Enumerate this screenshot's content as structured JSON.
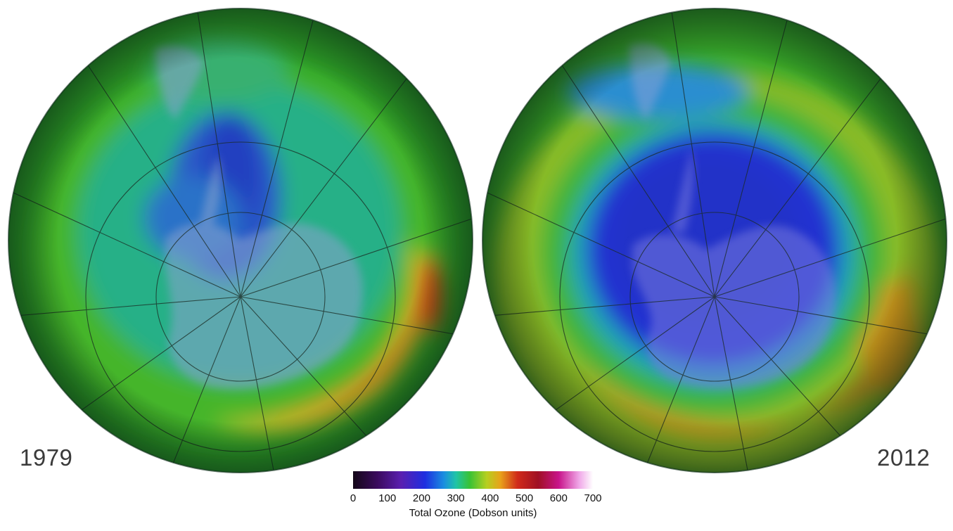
{
  "maps": [
    {
      "year_label": "1979"
    },
    {
      "year_label": "2012"
    }
  ],
  "colorbar": {
    "title": "Total Ozone (Dobson units)",
    "ticks": [
      "0",
      "100",
      "200",
      "300",
      "400",
      "500",
      "600",
      "700"
    ],
    "range": [
      0,
      700
    ],
    "stops": [
      {
        "value": 0,
        "color": "#140818"
      },
      {
        "value": 70,
        "color": "#3a0a5c"
      },
      {
        "value": 140,
        "color": "#5a1fb0"
      },
      {
        "value": 210,
        "color": "#1e2ee0"
      },
      {
        "value": 265,
        "color": "#1a8ee0"
      },
      {
        "value": 300,
        "color": "#1fc4a8"
      },
      {
        "value": 340,
        "color": "#38c235"
      },
      {
        "value": 390,
        "color": "#b6cf20"
      },
      {
        "value": 430,
        "color": "#e8a21a"
      },
      {
        "value": 480,
        "color": "#d02a1a"
      },
      {
        "value": 540,
        "color": "#a01024"
      },
      {
        "value": 600,
        "color": "#c8148a"
      },
      {
        "value": 660,
        "color": "#f0a8e8"
      },
      {
        "value": 700,
        "color": "#ffffff"
      }
    ]
  },
  "colors": {
    "ozone_low": "#2a3bd4",
    "ozone_mid": "#22b08a",
    "ozone_background": "#3fae2a",
    "ozone_high": "#d24a12",
    "land": "#8a96c8",
    "graticule": "#1a2a22",
    "label_text": "#3a3a3a"
  }
}
